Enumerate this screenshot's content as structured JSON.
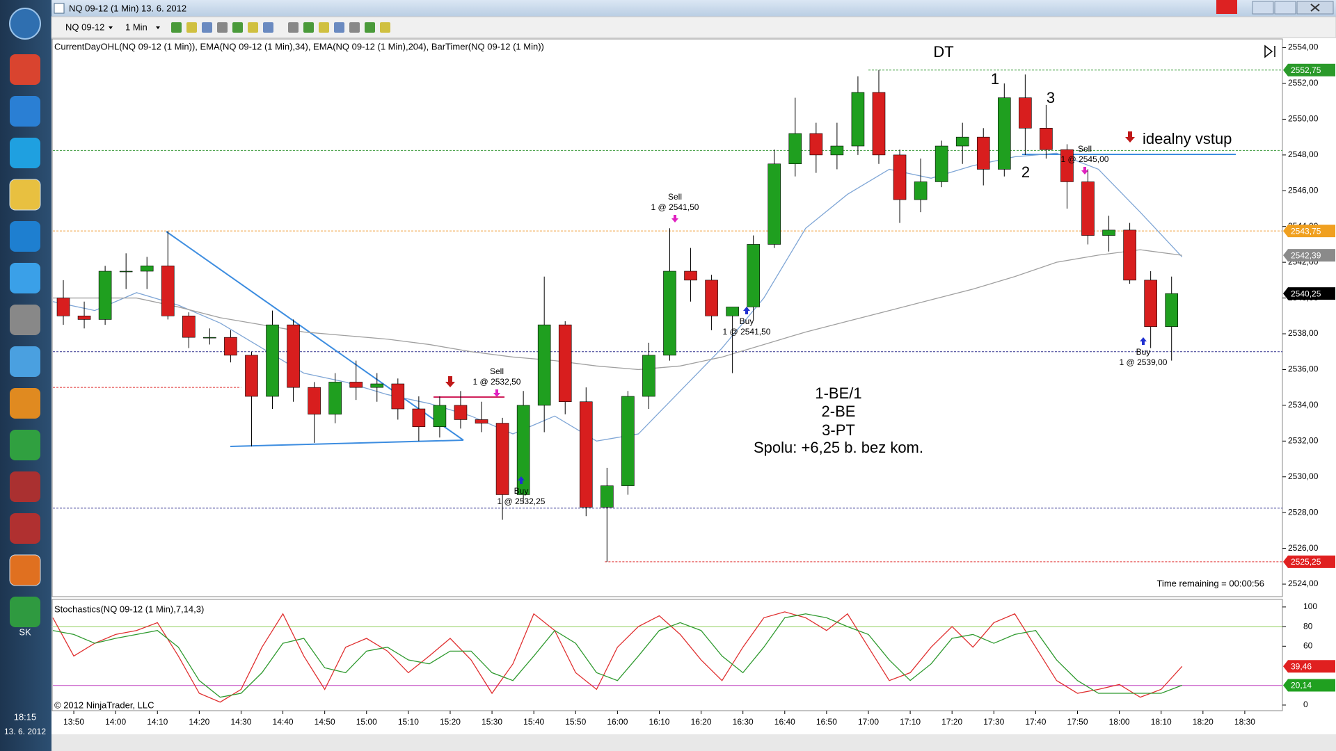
{
  "window": {
    "title": "NQ 09-12 (1 Min)  13. 6. 2012"
  },
  "toolbar": {
    "instrument": "NQ 09-12",
    "interval": "1 Min"
  },
  "taskbar": {
    "language": "SK",
    "time": "18:15",
    "date": "13. 6. 2012"
  },
  "chart_data": [
    {
      "type": "candlestick",
      "title": "CurrentDayOHL(NQ 09-12 (1 Min)),  EMA(NQ 09-12 (1 Min),34),  EMA(NQ 09-12 (1 Min),204),  BarTimer(NQ 09-12 (1 Min))",
      "bar_timer": "Time remaining = 00:00:56",
      "up_color": "#1f9f1f",
      "down_color": "#d81e1e",
      "x": [
        "13:45",
        "13:50",
        "13:55",
        "14:00",
        "14:05",
        "14:10",
        "14:15",
        "14:20",
        "14:25",
        "14:30",
        "14:35",
        "14:40",
        "14:45",
        "14:50",
        "14:55",
        "15:00",
        "15:05",
        "15:10",
        "15:15",
        "15:20",
        "15:25",
        "15:30",
        "15:35",
        "15:40",
        "15:45",
        "15:50",
        "15:55",
        "16:00",
        "16:05",
        "16:10",
        "16:15",
        "16:20",
        "16:25",
        "16:30",
        "16:35",
        "16:40",
        "16:45",
        "16:50",
        "16:55",
        "17:00",
        "17:05",
        "17:10",
        "17:15",
        "17:20",
        "17:25",
        "17:30",
        "17:35",
        "17:40",
        "17:45",
        "17:50",
        "17:55",
        "18:00",
        "18:05",
        "18:10"
      ],
      "open": [
        2540,
        2539,
        2538.8,
        2541.5,
        2541.5,
        2541.8,
        2539,
        2537.8,
        2537.8,
        2536.8,
        2534.5,
        2538.5,
        2535,
        2533.5,
        2535.3,
        2535,
        2535.2,
        2533.8,
        2532.8,
        2534,
        2533.2,
        2533,
        2529,
        2534,
        2538.5,
        2534.2,
        2528.3,
        2529.5,
        2534.5,
        2536.8,
        2541.5,
        2541,
        2539,
        2539.5,
        2543,
        2547.5,
        2549.2,
        2548,
        2548.5,
        2551.5,
        2548,
        2545.5,
        2546.5,
        2548.5,
        2549,
        2547.2,
        2551.2,
        2549.5,
        2548.3,
        2546.5,
        2543.5,
        2543.8,
        2541,
        2538.4
      ],
      "high": [
        2541,
        2539.8,
        2541.8,
        2542.5,
        2542.3,
        2543.75,
        2539.2,
        2538.3,
        2538.2,
        2537,
        2539.3,
        2538.8,
        2535.3,
        2535.8,
        2536.5,
        2535.8,
        2535.5,
        2534.5,
        2534.5,
        2534.8,
        2534.2,
        2533.3,
        2534.8,
        2541.2,
        2538.7,
        2535,
        2530.5,
        2534.8,
        2537.5,
        2543.9,
        2542.8,
        2541.3,
        2539.5,
        2543.5,
        2548.3,
        2551.2,
        2549.8,
        2549.8,
        2552.4,
        2552.75,
        2548.3,
        2547.8,
        2548.8,
        2549.8,
        2549.5,
        2552,
        2552.5,
        2550.8,
        2548.6,
        2547.2,
        2544.6,
        2544.2,
        2541.5,
        2541.2
      ],
      "low": [
        2538.5,
        2538.3,
        2538.5,
        2540.5,
        2540.5,
        2538.8,
        2537.2,
        2537.4,
        2536.4,
        2531.7,
        2533.8,
        2534.2,
        2531.9,
        2533,
        2534.3,
        2534.2,
        2533.2,
        2532,
        2532.2,
        2532.7,
        2532.5,
        2527.6,
        2528.5,
        2532.5,
        2533.5,
        2527.8,
        2525.25,
        2529,
        2533.8,
        2536.5,
        2539.8,
        2538.2,
        2535.8,
        2538.8,
        2542.8,
        2546.8,
        2547,
        2547.2,
        2548,
        2547.5,
        2544.2,
        2544.8,
        2546.2,
        2547.5,
        2546.3,
        2546.8,
        2548,
        2547.8,
        2545,
        2543,
        2542.6,
        2540.8,
        2537.2,
        2536.5
      ],
      "close": [
        2539,
        2538.8,
        2541.5,
        2541.5,
        2541.8,
        2539,
        2537.8,
        2537.8,
        2536.8,
        2534.5,
        2538.5,
        2535,
        2533.5,
        2535.3,
        2535,
        2535.2,
        2533.8,
        2532.8,
        2534,
        2533.2,
        2533,
        2529,
        2534,
        2538.5,
        2534.2,
        2528.3,
        2529.5,
        2534.5,
        2536.8,
        2541.5,
        2541,
        2539,
        2539.5,
        2543,
        2547.5,
        2549.2,
        2548,
        2548.5,
        2551.5,
        2548,
        2545.5,
        2546.5,
        2548.5,
        2549,
        2547.2,
        2551.2,
        2549.5,
        2548.3,
        2546.5,
        2543.5,
        2543.8,
        2541,
        2538.4,
        2540.25
      ],
      "overlays": [
        {
          "color": "#7fa6d6",
          "x": [
            "13:45",
            "13:55",
            "14:05",
            "14:15",
            "14:25",
            "14:35",
            "14:45",
            "14:55",
            "15:05",
            "15:15",
            "15:25",
            "15:35",
            "15:45",
            "15:55",
            "16:05",
            "16:15",
            "16:25",
            "16:35",
            "16:45",
            "16:55",
            "17:05",
            "17:15",
            "17:25",
            "17:35",
            "17:45",
            "17:55",
            "18:05",
            "18:15"
          ],
          "values": [
            2539.8,
            2539.3,
            2540.3,
            2539.6,
            2538.6,
            2537.2,
            2535.8,
            2535.3,
            2534.6,
            2534.1,
            2533.4,
            2532.4,
            2533.4,
            2532,
            2532.4,
            2534.8,
            2537.2,
            2540,
            2543.9,
            2545.8,
            2547.2,
            2546.7,
            2547.4,
            2547.9,
            2548.1,
            2547.2,
            2544.8,
            2542.3
          ]
        },
        {
          "color": "#a0a0a0",
          "x": [
            "13:45",
            "13:55",
            "14:05",
            "14:15",
            "14:25",
            "14:35",
            "14:45",
            "14:55",
            "15:05",
            "15:15",
            "15:25",
            "15:35",
            "15:45",
            "15:55",
            "16:05",
            "16:15",
            "16:25",
            "16:35",
            "16:45",
            "16:55",
            "17:05",
            "17:15",
            "17:25",
            "17:35",
            "17:45",
            "17:55",
            "18:05",
            "18:15"
          ],
          "values": [
            2540,
            2540,
            2540,
            2539.5,
            2538.9,
            2538.5,
            2538.1,
            2537.9,
            2537.7,
            2537.4,
            2537,
            2536.7,
            2536.5,
            2536.2,
            2536,
            2536.2,
            2536.7,
            2537.4,
            2538.1,
            2538.7,
            2539.3,
            2539.9,
            2540.5,
            2541.2,
            2542,
            2542.4,
            2542.7,
            2542.39
          ]
        }
      ],
      "levels": [
        {
          "value": 2552.75,
          "color": "#3a9a3a",
          "from": "17:00"
        },
        {
          "value": 2548.25,
          "color": "#3a9a3a"
        },
        {
          "value": 2543.75,
          "color": "#f0a040"
        },
        {
          "value": 2537,
          "color": "#33338f"
        },
        {
          "value": 2528.25,
          "color": "#33338f"
        },
        {
          "value": 2535,
          "color": "#e03030",
          "to": "14:30"
        },
        {
          "value": 2525.25,
          "color": "#e03030",
          "from": "15:57"
        }
      ],
      "price_markers": [
        {
          "value": 2552.75,
          "label": "2552,75",
          "color": "#2a9a2a"
        },
        {
          "value": 2543.75,
          "label": "2543,75",
          "color": "#f0a020"
        },
        {
          "value": 2542.39,
          "label": "2542,39",
          "color": "#8a8a8a"
        },
        {
          "value": 2540.25,
          "label": "2540,25",
          "color": "#000000"
        },
        {
          "value": 2525.25,
          "label": "2525,25",
          "color": "#e02020"
        }
      ],
      "xlim": [
        "13:45",
        "18:39"
      ],
      "ylim": [
        2523.34,
        2554.45
      ],
      "yticks": [
        {
          "value": 2524,
          "label": "2524,00"
        },
        {
          "value": 2526,
          "label": "2526,00"
        },
        {
          "value": 2528,
          "label": "2528,00"
        },
        {
          "value": 2530,
          "label": "2530,00"
        },
        {
          "value": 2532,
          "label": "2532,00"
        },
        {
          "value": 2534,
          "label": "2534,00"
        },
        {
          "value": 2536,
          "label": "2536,00"
        },
        {
          "value": 2538,
          "label": "2538,00"
        },
        {
          "value": 2540,
          "label": "2540,00"
        },
        {
          "value": 2542,
          "label": "2542,00"
        },
        {
          "value": 2544,
          "label": "2544,00"
        },
        {
          "value": 2546,
          "label": "2546,00"
        },
        {
          "value": 2548,
          "label": "2548,00"
        },
        {
          "value": 2550,
          "label": "2550,00"
        },
        {
          "value": 2552,
          "label": "2552,00"
        },
        {
          "value": 2554,
          "label": "2554,00"
        }
      ],
      "annotations": [
        "DT",
        "1",
        "2",
        "3",
        "idealny vstup",
        "1-BE/1",
        "2-BE",
        "3-PT",
        "Spolu: +6,25 b. bez kom."
      ],
      "trades": [
        {
          "side": "Sell",
          "label": "1 @ 2532,50"
        },
        {
          "side": "Buy",
          "label": "1 @ 2532,25"
        },
        {
          "side": "Sell",
          "label": "1 @ 2541,50"
        },
        {
          "side": "Buy",
          "label": "1 @ 2541,50"
        },
        {
          "side": "Sell",
          "label": "1 @ 2545,00"
        },
        {
          "side": "Buy",
          "label": "1 @ 2539,00"
        }
      ]
    },
    {
      "type": "line",
      "title": "Stochastics(NQ 09-12 (1 Min),7,14,3)",
      "copyright": "© 2012 NinjaTrader, LLC",
      "x": [
        "13:45",
        "13:50",
        "13:55",
        "14:00",
        "14:05",
        "14:10",
        "14:15",
        "14:20",
        "14:25",
        "14:30",
        "14:35",
        "14:40",
        "14:45",
        "14:50",
        "14:55",
        "15:00",
        "15:05",
        "15:10",
        "15:15",
        "15:20",
        "15:25",
        "15:30",
        "15:35",
        "15:40",
        "15:45",
        "15:50",
        "15:55",
        "16:00",
        "16:05",
        "16:10",
        "16:15",
        "16:20",
        "16:25",
        "16:30",
        "16:35",
        "16:40",
        "16:45",
        "16:50",
        "16:55",
        "17:00",
        "17:05",
        "17:10",
        "17:15",
        "17:20",
        "17:25",
        "17:30",
        "17:35",
        "17:40",
        "17:45",
        "17:50",
        "17:55",
        "18:00",
        "18:05",
        "18:10",
        "18:15"
      ],
      "series": [
        {
          "color": "#e03030",
          "values": [
            89,
            50,
            63,
            72,
            76,
            84,
            50,
            12,
            3,
            16,
            59,
            93,
            50,
            16,
            59,
            68,
            55,
            33,
            50,
            68,
            46,
            12,
            42,
            93,
            76,
            33,
            16,
            59,
            80,
            91,
            72,
            46,
            25,
            59,
            89,
            95,
            89,
            76,
            93,
            59,
            25,
            33,
            59,
            80,
            59,
            84,
            93,
            59,
            25,
            12,
            16,
            21,
            8,
            16,
            39.46
          ]
        },
        {
          "color": "#2f9a2f",
          "values": [
            76,
            72,
            63,
            68,
            72,
            76,
            59,
            25,
            8,
            12,
            33,
            63,
            68,
            38,
            33,
            55,
            59,
            46,
            42,
            55,
            55,
            33,
            25,
            50,
            76,
            63,
            33,
            25,
            50,
            76,
            84,
            76,
            50,
            33,
            59,
            89,
            93,
            89,
            80,
            72,
            46,
            25,
            42,
            68,
            72,
            63,
            72,
            76,
            46,
            25,
            12,
            12,
            12,
            12,
            20.14
          ]
        }
      ],
      "levels": [
        {
          "value": 80,
          "color": "#8fce5a"
        },
        {
          "value": 20,
          "color": "#c040c0"
        }
      ],
      "price_markers": [
        {
          "value": 39.46,
          "label": "39,46",
          "color": "#e02020"
        },
        {
          "value": 20.14,
          "label": "20,14",
          "color": "#20a020"
        }
      ],
      "xlim": [
        "13:45",
        "18:39"
      ],
      "ylim": [
        -5,
        107
      ],
      "yticks": [
        0,
        60,
        80,
        100
      ],
      "xticks": [
        "13:50",
        "14:00",
        "14:10",
        "14:20",
        "14:30",
        "14:40",
        "14:50",
        "15:00",
        "15:10",
        "15:20",
        "15:30",
        "15:40",
        "15:50",
        "16:00",
        "16:10",
        "16:20",
        "16:30",
        "16:40",
        "16:50",
        "17:00",
        "17:10",
        "17:20",
        "17:30",
        "17:40",
        "17:50",
        "18:00",
        "18:10",
        "18:20",
        "18:30"
      ]
    }
  ]
}
